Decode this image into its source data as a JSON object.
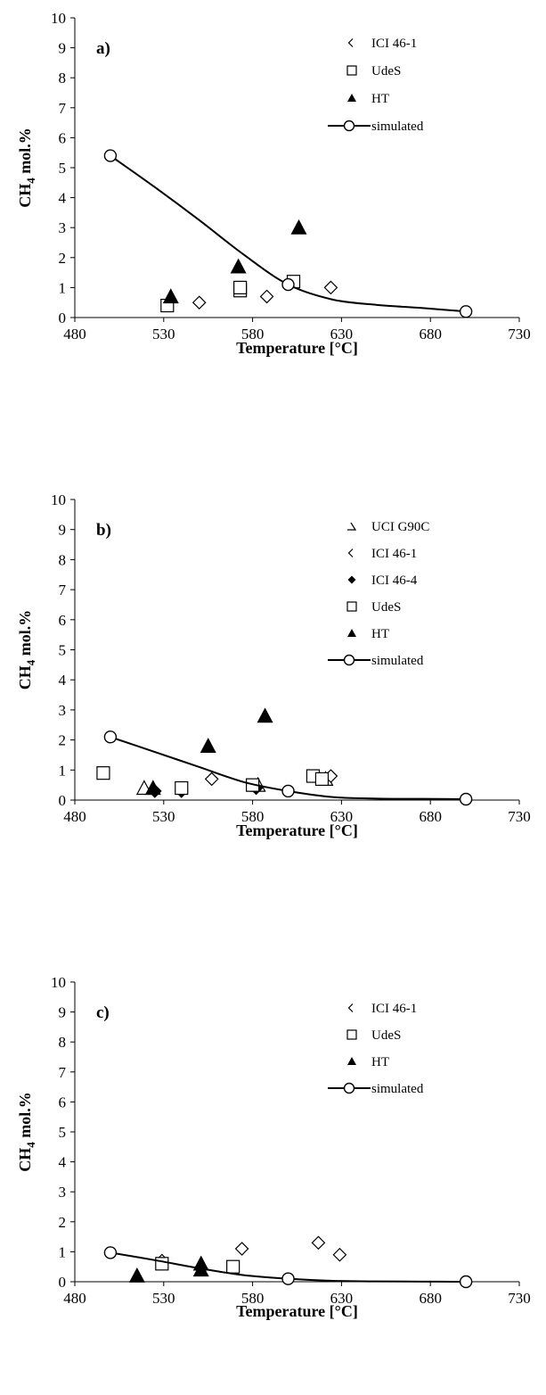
{
  "chart_data": [
    {
      "type": "scatter",
      "panel_label": "a)",
      "xlabel": "Temperature [°C]",
      "ylabel_main": "CH",
      "ylabel_sub": "4",
      "ylabel_rest": " mol.%",
      "xlim": [
        480,
        730
      ],
      "ylim": [
        0,
        10
      ],
      "xticks": [
        480,
        530,
        580,
        630,
        680,
        730
      ],
      "yticks": [
        0,
        1,
        2,
        3,
        4,
        5,
        6,
        7,
        8,
        9,
        10
      ],
      "legend_position": "top-right",
      "grid": false,
      "series": [
        {
          "name": "ICI 46-1",
          "marker": "diamond",
          "points": [
            [
              550,
              0.5
            ],
            [
              588,
              0.7
            ],
            [
              624,
              1.0
            ]
          ]
        },
        {
          "name": "UdeS",
          "marker": "square",
          "points": [
            [
              532,
              0.4
            ],
            [
              573,
              0.9
            ],
            [
              573,
              1.0
            ],
            [
              603,
              1.2
            ]
          ]
        },
        {
          "name": "HT",
          "marker": "triangle",
          "points": [
            [
              534,
              0.7
            ],
            [
              572,
              1.7
            ],
            [
              606,
              3.0
            ]
          ]
        },
        {
          "name": "simulated",
          "marker": "circle-line",
          "points": [
            [
              500,
              5.4
            ],
            [
              600,
              1.1
            ],
            [
              700,
              0.2
            ]
          ],
          "curve": [
            [
              500,
              5.4
            ],
            [
              525,
              4.35
            ],
            [
              550,
              3.25
            ],
            [
              575,
              2.1
            ],
            [
              600,
              1.1
            ],
            [
              625,
              0.6
            ],
            [
              650,
              0.42
            ],
            [
              675,
              0.32
            ],
            [
              700,
              0.2
            ]
          ]
        }
      ]
    },
    {
      "type": "scatter",
      "panel_label": "b)",
      "xlabel": "Temperature [°C]",
      "ylabel_main": "CH",
      "ylabel_sub": "4",
      "ylabel_rest": " mol.%",
      "xlim": [
        480,
        730
      ],
      "ylim": [
        0,
        10
      ],
      "xticks": [
        480,
        530,
        580,
        630,
        680,
        730
      ],
      "yticks": [
        0,
        1,
        2,
        3,
        4,
        5,
        6,
        7,
        8,
        9,
        10
      ],
      "legend_position": "top-right",
      "grid": false,
      "series": [
        {
          "name": "UCI G90C",
          "marker": "triangle-open",
          "points": [
            [
              519,
              0.4
            ],
            [
              583,
              0.5
            ],
            [
              621,
              0.7
            ]
          ]
        },
        {
          "name": "ICI 46-1",
          "marker": "diamond",
          "points": [
            [
              557,
              0.7
            ],
            [
              624,
              0.8
            ]
          ]
        },
        {
          "name": "ICI 46-4",
          "marker": "diamond-filled",
          "points": [
            [
              525,
              0.3
            ],
            [
              540,
              0.3
            ],
            [
              582,
              0.4
            ]
          ]
        },
        {
          "name": "UdeS",
          "marker": "square",
          "points": [
            [
              496,
              0.9
            ],
            [
              540,
              0.4
            ],
            [
              580,
              0.5
            ],
            [
              614,
              0.8
            ],
            [
              619,
              0.7
            ]
          ]
        },
        {
          "name": "HT",
          "marker": "triangle",
          "points": [
            [
              524,
              0.4
            ],
            [
              555,
              1.8
            ],
            [
              587,
              2.8
            ]
          ]
        },
        {
          "name": "simulated",
          "marker": "circle-line",
          "points": [
            [
              500,
              2.1
            ],
            [
              600,
              0.3
            ],
            [
              700,
              0.03
            ]
          ],
          "curve": [
            [
              500,
              2.1
            ],
            [
              525,
              1.6
            ],
            [
              550,
              1.1
            ],
            [
              575,
              0.6
            ],
            [
              600,
              0.3
            ],
            [
              625,
              0.1
            ],
            [
              650,
              0.05
            ],
            [
              675,
              0.04
            ],
            [
              700,
              0.03
            ]
          ]
        }
      ]
    },
    {
      "type": "scatter",
      "panel_label": "c)",
      "xlabel": "Temperature [°C]",
      "ylabel_main": "CH",
      "ylabel_sub": "4",
      "ylabel_rest": " mol.%",
      "xlim": [
        480,
        730
      ],
      "ylim": [
        0,
        10
      ],
      "xticks": [
        480,
        530,
        580,
        630,
        680,
        730
      ],
      "yticks": [
        0,
        1,
        2,
        3,
        4,
        5,
        6,
        7,
        8,
        9,
        10
      ],
      "legend_position": "top-right",
      "grid": false,
      "series": [
        {
          "name": "ICI 46-1",
          "marker": "diamond",
          "points": [
            [
              529,
              0.7
            ],
            [
              574,
              1.1
            ],
            [
              617,
              1.3
            ],
            [
              629,
              0.9
            ]
          ]
        },
        {
          "name": "UdeS",
          "marker": "square",
          "points": [
            [
              529,
              0.6
            ],
            [
              569,
              0.5
            ]
          ]
        },
        {
          "name": "HT",
          "marker": "triangle",
          "points": [
            [
              515,
              0.2
            ],
            [
              551,
              0.6
            ],
            [
              551,
              0.4
            ]
          ]
        },
        {
          "name": "simulated",
          "marker": "circle-line",
          "points": [
            [
              500,
              0.97
            ],
            [
              600,
              0.1
            ],
            [
              700,
              0.0
            ]
          ],
          "curve": [
            [
              500,
              0.97
            ],
            [
              525,
              0.72
            ],
            [
              550,
              0.45
            ],
            [
              575,
              0.22
            ],
            [
              600,
              0.1
            ],
            [
              625,
              0.03
            ],
            [
              650,
              0.01
            ],
            [
              675,
              0.005
            ],
            [
              700,
              0.0
            ]
          ]
        }
      ]
    }
  ]
}
